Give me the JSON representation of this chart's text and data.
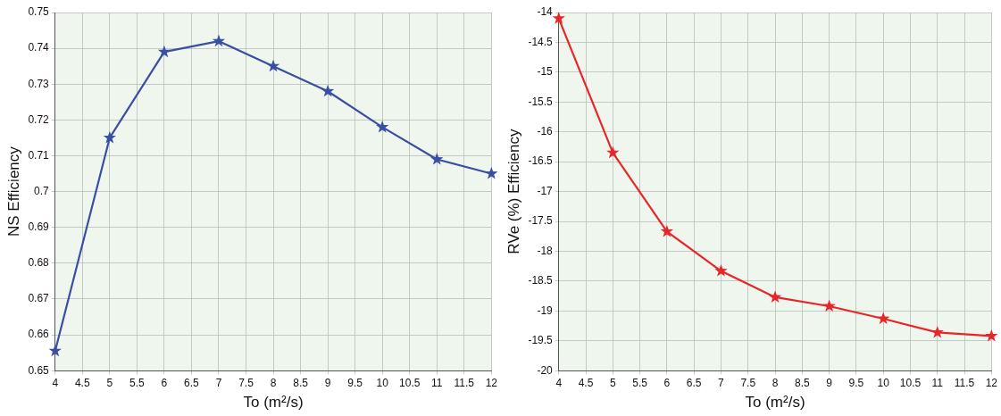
{
  "chart_data": [
    {
      "type": "line",
      "xlabel": "To (m²/s)",
      "ylabel": "NS Efficiency",
      "x": [
        4,
        5,
        6,
        7,
        8,
        9,
        10,
        11,
        12
      ],
      "series": [
        {
          "color": "#3a4fa3",
          "values": [
            0.6555,
            0.715,
            0.739,
            0.742,
            0.735,
            0.728,
            0.718,
            0.709,
            0.705
          ]
        }
      ],
      "xlim": [
        4,
        12
      ],
      "xticks": [
        4,
        4.5,
        5,
        5.5,
        6,
        6.5,
        7,
        7.5,
        8,
        8.5,
        9,
        9.5,
        10,
        10.5,
        11,
        11.5,
        12
      ],
      "ylim": [
        0.65,
        0.75
      ],
      "yticks": [
        0.65,
        0.66,
        0.67,
        0.68,
        0.69,
        0.7,
        0.71,
        0.72,
        0.73,
        0.74,
        0.75
      ],
      "grid": true,
      "legend": false,
      "marker": "star",
      "line_style": "solid"
    },
    {
      "type": "line",
      "xlabel": "To (m²/s)",
      "ylabel": "RVe (%) Efficiency",
      "x": [
        4,
        5,
        6,
        7,
        8,
        9,
        10,
        11,
        12
      ],
      "series": [
        {
          "color": "#e8262a",
          "values": [
            -14.1,
            -16.35,
            -17.67,
            -18.33,
            -18.77,
            -18.92,
            -19.13,
            -19.36,
            -19.42
          ]
        }
      ],
      "xlim": [
        4,
        12
      ],
      "xticks": [
        4,
        4.5,
        5,
        5.5,
        6,
        6.5,
        7,
        7.5,
        8,
        8.5,
        9,
        9.5,
        10,
        10.5,
        11,
        11.5,
        12
      ],
      "ylim": [
        -20,
        -14
      ],
      "yticks": [
        -20,
        -19.5,
        -19,
        -18.5,
        -18,
        -17.5,
        -17,
        -16.5,
        -16,
        -15.5,
        -15,
        -14.5,
        -14
      ],
      "grid": true,
      "legend": false,
      "marker": "star",
      "line_style": "solid"
    }
  ]
}
